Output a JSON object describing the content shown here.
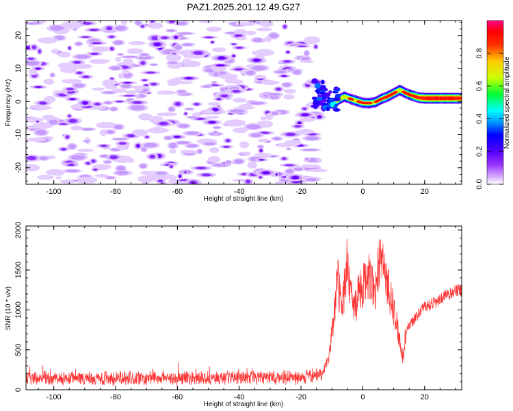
{
  "chart_data": [
    {
      "type": "heatmap",
      "title": "PAZ1.2025.201.12.49.G27",
      "xlabel": "Height of straight line (km)",
      "ylabel": "Frequency (Hz)",
      "xlim": [
        -109,
        32
      ],
      "ylim": [
        -25,
        24.5
      ],
      "xticks": [
        -100,
        -80,
        -60,
        -40,
        -20,
        0,
        20
      ],
      "yticks": [
        -20,
        -10,
        0,
        10,
        20
      ],
      "colorbar": {
        "label": "Normalized spectral amplitude",
        "range": [
          0,
          1
        ],
        "ticks": [
          "0.0",
          "0.2",
          "0.4",
          "0.6",
          "0.8"
        ],
        "colormap": [
          "#ffffff",
          "#cc99ff",
          "#7a00ff",
          "#0000ff",
          "#00ffff",
          "#00ff66",
          "#ffff00",
          "#ff6600",
          "#ff0000",
          "#ff0088"
        ]
      },
      "noise_region": {
        "x": [
          -108,
          -14
        ],
        "y": [
          -25,
          24.5
        ],
        "typical_amplitude": 0.1
      },
      "signal_track": {
        "x": [
          -14,
          -12,
          -10,
          -8,
          -6,
          -4,
          -2,
          0,
          2,
          4,
          6,
          8,
          10,
          12,
          14,
          16,
          18,
          20,
          22,
          24,
          26,
          28,
          30,
          32
        ],
        "frequency": [
          2.5,
          1.5,
          -1.0,
          0.5,
          1.5,
          0.8,
          0.2,
          -0.4,
          -0.5,
          -0.2,
          0.8,
          1.5,
          2.5,
          3.5,
          2.5,
          1.8,
          1.2,
          1.0,
          1.0,
          1.0,
          1.0,
          1.0,
          1.0,
          1.0
        ],
        "amplitude": [
          0.15,
          0.2,
          0.3,
          0.4,
          0.45,
          0.5,
          0.55,
          0.55,
          0.55,
          0.5,
          0.55,
          0.6,
          0.55,
          0.5,
          0.55,
          0.7,
          0.8,
          0.85,
          0.9,
          0.9,
          0.9,
          0.9,
          0.88,
          0.85
        ]
      }
    },
    {
      "type": "line",
      "xlabel": "Height of straight line (km)",
      "ylabel": "SNR (10 * v/v)",
      "xlim": [
        -109,
        32
      ],
      "ylim": [
        0,
        2050
      ],
      "xticks": [
        -100,
        -80,
        -60,
        -40,
        -20,
        0,
        20
      ],
      "yticks": [
        0,
        500,
        1000,
        1500,
        2000
      ],
      "color": "#ff3333",
      "x": [
        -109,
        -100,
        -90,
        -80,
        -70,
        -60,
        -50,
        -40,
        -30,
        -20,
        -15,
        -13,
        -11,
        -10,
        -9,
        -8,
        -7,
        -6,
        -5,
        -4,
        -3,
        -2,
        -1,
        0,
        1,
        2,
        3,
        4,
        5,
        6,
        7,
        8,
        9,
        10,
        11,
        12,
        13,
        14,
        16,
        18,
        20,
        24,
        28,
        32
      ],
      "y": [
        150,
        140,
        150,
        145,
        150,
        145,
        150,
        150,
        150,
        155,
        170,
        220,
        380,
        700,
        1100,
        1400,
        1000,
        1250,
        1600,
        1200,
        1000,
        1100,
        1250,
        1300,
        1400,
        1450,
        1350,
        1250,
        1550,
        1600,
        1500,
        1350,
        1150,
        1000,
        850,
        600,
        400,
        750,
        850,
        950,
        1050,
        1100,
        1200,
        1250
      ]
    }
  ]
}
